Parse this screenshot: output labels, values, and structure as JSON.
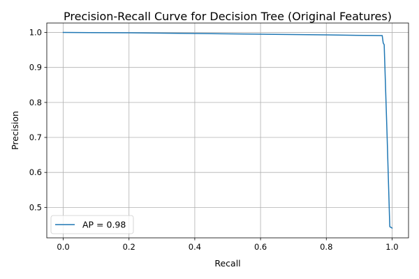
{
  "chart_data": {
    "type": "line",
    "title": "Precision-Recall Curve for Decision Tree (Original Features)",
    "xlabel": "Recall",
    "ylabel": "Precision",
    "xlim": [
      -0.05,
      1.05
    ],
    "ylim": [
      0.413,
      1.027
    ],
    "xticks": [
      0.0,
      0.2,
      0.4,
      0.6,
      0.8,
      1.0
    ],
    "xtick_labels": [
      "0.0",
      "0.2",
      "0.4",
      "0.6",
      "0.8",
      "1.0"
    ],
    "yticks": [
      0.5,
      0.6,
      0.7,
      0.8,
      0.9,
      1.0
    ],
    "ytick_labels": [
      "0.5",
      "0.6",
      "0.7",
      "0.8",
      "0.9",
      "1.0"
    ],
    "grid": true,
    "legend_position": "lower-left",
    "series": [
      {
        "name": "AP = 0.98",
        "color": "#1f77b4",
        "x": [
          0.0,
          0.2,
          0.4,
          0.6,
          0.8,
          0.97,
          0.973,
          0.976,
          0.985,
          0.993,
          1.0
        ],
        "y": [
          1.0,
          0.999,
          0.997,
          0.995,
          0.993,
          0.991,
          0.97,
          0.965,
          0.7,
          0.445,
          0.441
        ]
      }
    ]
  }
}
